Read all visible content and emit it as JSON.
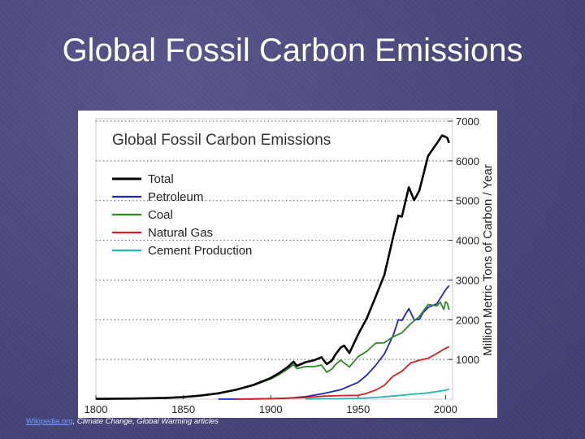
{
  "slide": {
    "title": "Global Fossil Carbon Emissions"
  },
  "caption": {
    "link_text": "Wikipedia.org",
    "rest_text": ", Climate Change, Global Warming articles"
  },
  "chart_data": {
    "type": "line",
    "title": "Global Fossil Carbon Emissions",
    "ylabel": "Million Metric Tons of Carbon / Year",
    "xlabel": "",
    "xlim": [
      1800,
      2004
    ],
    "ylim": [
      0,
      7000
    ],
    "x_ticks": [
      1800,
      1850,
      1900,
      1950,
      2000
    ],
    "y_ticks": [
      1000,
      2000,
      3000,
      4000,
      5000,
      6000,
      7000
    ],
    "y_axis_side": "right",
    "grid": "horizontal dotted",
    "legend_position": "top-left",
    "series": [
      {
        "name": "Total",
        "color": "#000000",
        "points": [
          [
            1800,
            8
          ],
          [
            1820,
            14
          ],
          [
            1840,
            33
          ],
          [
            1850,
            54
          ],
          [
            1860,
            91
          ],
          [
            1870,
            147
          ],
          [
            1880,
            236
          ],
          [
            1890,
            356
          ],
          [
            1900,
            534
          ],
          [
            1905,
            663
          ],
          [
            1910,
            819
          ],
          [
            1913,
            943
          ],
          [
            1915,
            840
          ],
          [
            1920,
            932
          ],
          [
            1925,
            983
          ],
          [
            1929,
            1056
          ],
          [
            1932,
            881
          ],
          [
            1935,
            973
          ],
          [
            1937,
            1122
          ],
          [
            1940,
            1299
          ],
          [
            1942,
            1348
          ],
          [
            1945,
            1160
          ],
          [
            1950,
            1630
          ],
          [
            1955,
            2043
          ],
          [
            1960,
            2577
          ],
          [
            1965,
            3130
          ],
          [
            1970,
            4076
          ],
          [
            1973,
            4622
          ],
          [
            1975,
            4596
          ],
          [
            1979,
            5335
          ],
          [
            1982,
            5010
          ],
          [
            1985,
            5250
          ],
          [
            1990,
            6127
          ],
          [
            1995,
            6440
          ],
          [
            1998,
            6640
          ],
          [
            2000,
            6600
          ],
          [
            2001,
            6580
          ],
          [
            2002,
            6450
          ]
        ]
      },
      {
        "name": "Petroleum",
        "color": "#1f24c8",
        "points": [
          [
            1870,
            1
          ],
          [
            1890,
            5
          ],
          [
            1900,
            10
          ],
          [
            1910,
            25
          ],
          [
            1920,
            64
          ],
          [
            1930,
            141
          ],
          [
            1940,
            238
          ],
          [
            1950,
            423
          ],
          [
            1955,
            610
          ],
          [
            1960,
            849
          ],
          [
            1965,
            1137
          ],
          [
            1970,
            1600
          ],
          [
            1973,
            2000
          ],
          [
            1975,
            1980
          ],
          [
            1979,
            2280
          ],
          [
            1982,
            2000
          ],
          [
            1985,
            2010
          ],
          [
            1987,
            2170
          ],
          [
            1990,
            2310
          ],
          [
            1995,
            2400
          ],
          [
            2000,
            2750
          ],
          [
            2002,
            2860
          ]
        ]
      },
      {
        "name": "Coal",
        "color": "#2a8a1f",
        "points": [
          [
            1800,
            8
          ],
          [
            1820,
            14
          ],
          [
            1840,
            33
          ],
          [
            1850,
            54
          ],
          [
            1860,
            91
          ],
          [
            1870,
            146
          ],
          [
            1880,
            230
          ],
          [
            1890,
            346
          ],
          [
            1900,
            507
          ],
          [
            1905,
            626
          ],
          [
            1910,
            768
          ],
          [
            1913,
            868
          ],
          [
            1915,
            770
          ],
          [
            1920,
            820
          ],
          [
            1925,
            820
          ],
          [
            1929,
            860
          ],
          [
            1932,
            680
          ],
          [
            1935,
            760
          ],
          [
            1937,
            870
          ],
          [
            1940,
            980
          ],
          [
            1945,
            810
          ],
          [
            1950,
            1070
          ],
          [
            1955,
            1208
          ],
          [
            1960,
            1410
          ],
          [
            1965,
            1420
          ],
          [
            1970,
            1570
          ],
          [
            1975,
            1670
          ],
          [
            1980,
            1900
          ],
          [
            1985,
            2080
          ],
          [
            1990,
            2380
          ],
          [
            1995,
            2350
          ],
          [
            1997,
            2440
          ],
          [
            1999,
            2260
          ],
          [
            2000,
            2450
          ],
          [
            2001,
            2420
          ],
          [
            2002,
            2250
          ]
        ]
      },
      {
        "name": "Natural Gas",
        "color": "#d81f1f",
        "points": [
          [
            1880,
            1
          ],
          [
            1900,
            14
          ],
          [
            1920,
            40
          ],
          [
            1930,
            75
          ],
          [
            1940,
            90
          ],
          [
            1950,
            97
          ],
          [
            1955,
            150
          ],
          [
            1960,
            227
          ],
          [
            1965,
            350
          ],
          [
            1970,
            580
          ],
          [
            1975,
            700
          ],
          [
            1980,
            910
          ],
          [
            1985,
            980
          ],
          [
            1990,
            1030
          ],
          [
            1995,
            1150
          ],
          [
            2000,
            1280
          ],
          [
            2002,
            1320
          ]
        ]
      },
      {
        "name": "Cement Production",
        "color": "#22b8b4",
        "points": [
          [
            1920,
            5
          ],
          [
            1930,
            10
          ],
          [
            1940,
            13
          ],
          [
            1950,
            18
          ],
          [
            1960,
            43
          ],
          [
            1970,
            78
          ],
          [
            1980,
            120
          ],
          [
            1990,
            157
          ],
          [
            2000,
            226
          ],
          [
            2002,
            250
          ]
        ]
      }
    ]
  }
}
